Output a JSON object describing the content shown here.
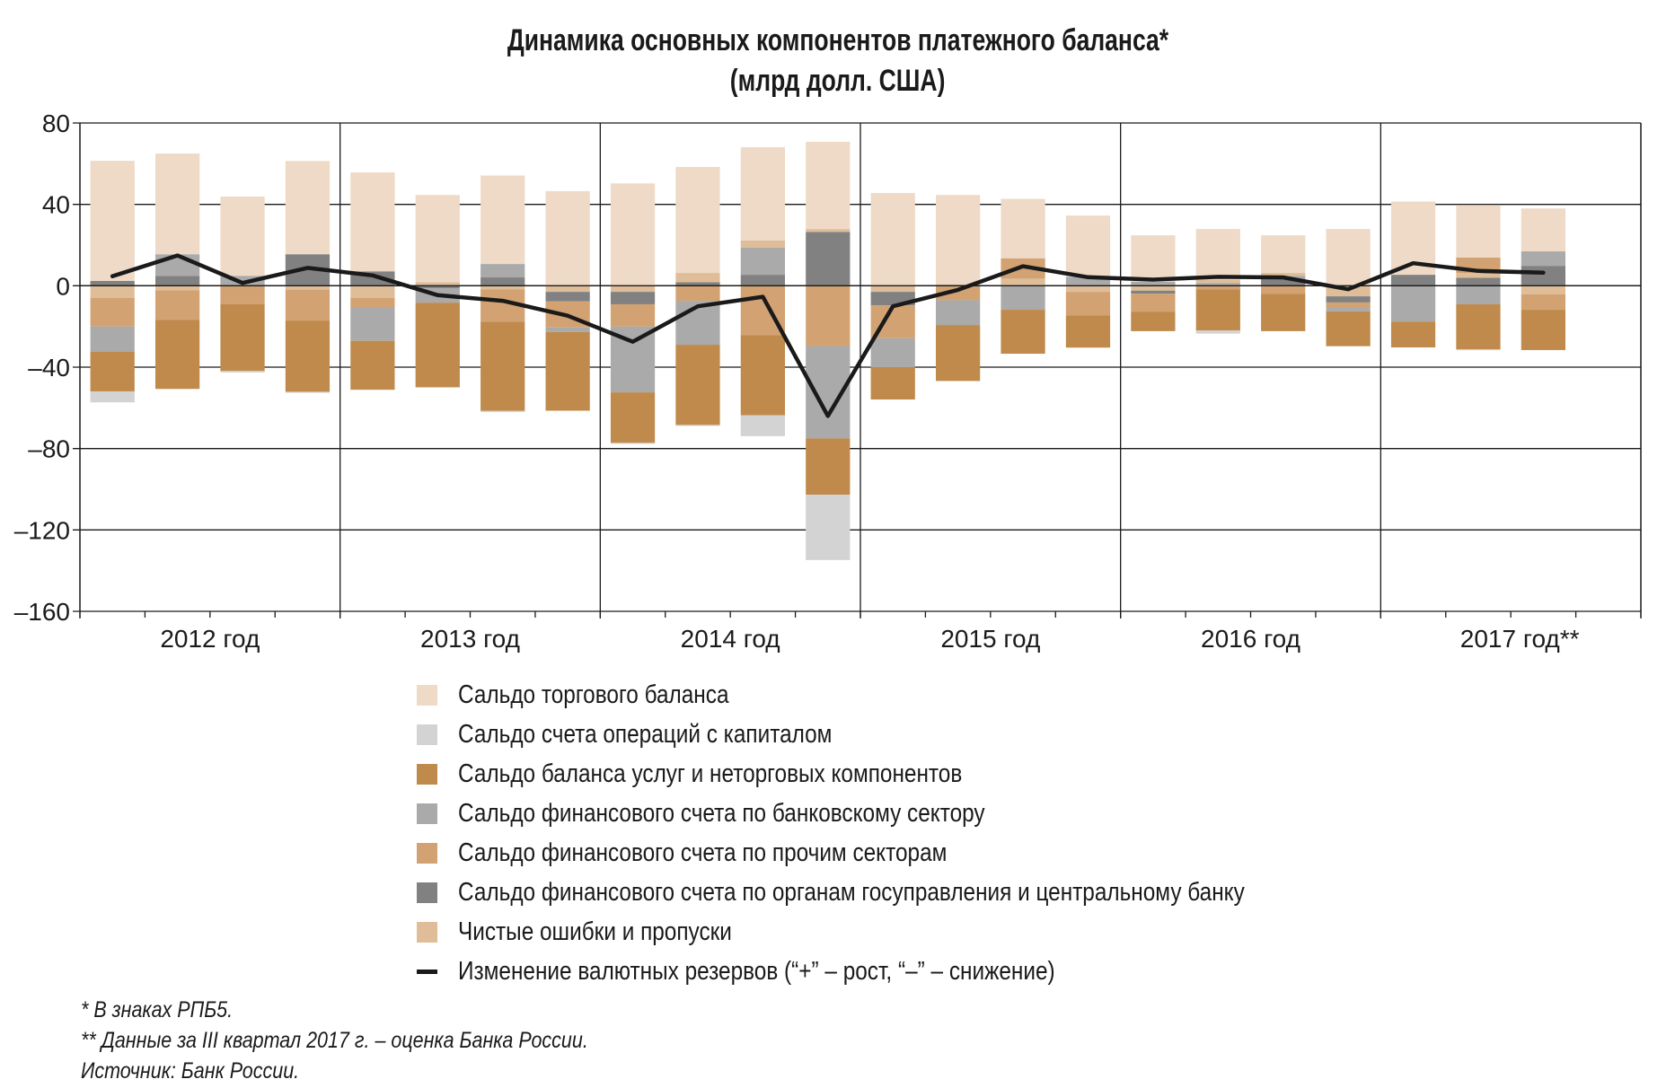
{
  "title": {
    "line1": "Динамика основных компонентов платежного баланса*",
    "line2": "(млрд долл. США)"
  },
  "chart_data": {
    "type": "bar",
    "stacked": true,
    "title": "Динамика основных компонентов платежного баланса* (млрд долл. США)",
    "xlabel": "",
    "ylabel": "",
    "ylim": [
      -160,
      80
    ],
    "yticks": [
      80,
      40,
      0,
      -40,
      -80,
      -120,
      -160
    ],
    "ytick_labels": [
      "80",
      "40",
      "0",
      "–40",
      "–80",
      "–120",
      "–160"
    ],
    "grid": true,
    "legend_position": "bottom",
    "year_labels": [
      "2012 год",
      "2013 год",
      "2014 год",
      "2015 год",
      "2016 год",
      "2017 год**"
    ],
    "categories": [
      "2012Q1",
      "2012Q2",
      "2012Q3",
      "2012Q4",
      "2013Q1",
      "2013Q2",
      "2013Q3",
      "2013Q4",
      "2014Q1",
      "2014Q2",
      "2014Q3",
      "2014Q4",
      "2015Q1",
      "2015Q2",
      "2015Q3",
      "2015Q4",
      "2016Q1",
      "2016Q2",
      "2016Q3",
      "2016Q4",
      "2017Q1",
      "2017Q2",
      "2017Q3"
    ],
    "series": [
      {
        "key": "trade",
        "name": "Сальдо торгового баланса",
        "color": "#eedac6",
        "values": [
          59,
          49.5,
          38.9,
          45.8,
          48.6,
          42.9,
          43.5,
          46.5,
          50.3,
          52.1,
          45.9,
          42.9,
          45.6,
          44.1,
          29.2,
          30.1,
          22.8,
          25.1,
          18.5,
          27.9,
          36,
          25.8,
          21.1
        ]
      },
      {
        "key": "capital",
        "name": "Сальдо счета операций с капиталом",
        "color": "#d3d3d3",
        "values": [
          -5.4,
          0,
          -0.7,
          -0.5,
          0,
          0,
          -0.5,
          0,
          -0.5,
          -0.5,
          -10.3,
          -32.1,
          0,
          0,
          0,
          0,
          0,
          -1.5,
          0,
          0,
          0,
          -0.5,
          0
        ]
      },
      {
        "key": "services",
        "name": "Сальдо баланса услуг и неторговых компонентов",
        "color": "#bf8a4c",
        "values": [
          -19.4,
          -34,
          -32.8,
          -35,
          -24,
          -41.6,
          -43.9,
          -38.7,
          -24.8,
          -39.4,
          -39.4,
          -27.7,
          -15.9,
          -27.5,
          -21.6,
          -15.9,
          -9.6,
          -20.3,
          -18.4,
          -17.1,
          -12.7,
          -22.1,
          -19.8
        ]
      },
      {
        "key": "bank",
        "name": "Сальдо финансового счета по банковскому сектору",
        "color": "#a9aaa9",
        "values": [
          -12.5,
          10.6,
          4.9,
          0,
          -16.2,
          -7.1,
          6.6,
          -2.2,
          -32.3,
          -21.6,
          13.3,
          -45.4,
          -14.2,
          -12.2,
          -11.8,
          4.4,
          2,
          1.4,
          1.5,
          -1.7,
          -17.6,
          -9.1,
          7.1
        ]
      },
      {
        "key": "other",
        "name": "Сальдо финансового счета по прочим секторам",
        "color": "#d2a272",
        "values": [
          -14,
          -14.5,
          -9.1,
          -15.2,
          -4.9,
          0,
          -15.9,
          -12.8,
          -11,
          -7.4,
          -24.2,
          -29.6,
          -16.2,
          -7.1,
          10,
          -11.5,
          -8.8,
          -1.7,
          -3.9,
          -2.7,
          0,
          7.6,
          -7.6
        ]
      },
      {
        "key": "gov",
        "name": "Сальдо финансового счета по органам госуправления и центральному банку",
        "color": "#818181",
        "values": [
          2.4,
          4.9,
          0,
          15.5,
          7.1,
          -1.2,
          4.1,
          -4.7,
          -6.1,
          1.7,
          5.4,
          26.5,
          -6.6,
          0.5,
          0,
          0,
          -1.5,
          0,
          3.4,
          -3,
          5.4,
          3.9,
          9.8
        ]
      },
      {
        "key": "errors",
        "name": "Чистые ошибки и пропуски",
        "color": "#dfbd98",
        "values": [
          -6,
          -2.2,
          0,
          -1.9,
          -6,
          1.7,
          -1.7,
          -3,
          -3,
          4.6,
          3.5,
          1.4,
          -3,
          0,
          3.5,
          -3,
          -2.4,
          1.4,
          1.4,
          -5.2,
          0,
          2.4,
          -4.2
        ]
      }
    ],
    "line": {
      "key": "reserves",
      "name": "Изменение валютных резервов (“+” – рост, “–” – снижение)",
      "color": "#1a1a1a",
      "values": [
        4.7,
        14.9,
        1.4,
        8.8,
        5.1,
        -4.6,
        -7.4,
        -14.7,
        -27.5,
        -10.1,
        -5.4,
        -64,
        -10.1,
        -2,
        9.6,
        4.2,
        3,
        4.4,
        4.1,
        -1.7,
        11.1,
        7.3,
        6.4
      ]
    }
  },
  "legend": [
    {
      "label": "Сальдо торгового баланса",
      "color": "#eedac6"
    },
    {
      "label": "Сальдо счета операций с капиталом",
      "color": "#d3d3d3"
    },
    {
      "label": "Сальдо баланса услуг и неторговых компонентов",
      "color": "#bf8a4c"
    },
    {
      "label": "Сальдо финансового счета по банковскому сектору",
      "color": "#a9aaa9"
    },
    {
      "label": "Сальдо финансового счета по прочим секторам",
      "color": "#d2a272"
    },
    {
      "label": "Сальдо финансового счета по органам госуправления и центральному банку",
      "color": "#818181"
    },
    {
      "label": "Чистые ошибки и пропуски",
      "color": "#dfbd98"
    },
    {
      "label": "Изменение валютных резервов (“+” – рост, “–” – снижение)",
      "color": "#1a1a1a"
    }
  ],
  "notes": [
    "* В знаках РПБ5.",
    "** Данные за III квартал 2017 г. – оценка Банка России.",
    "Источник: Банк России."
  ]
}
